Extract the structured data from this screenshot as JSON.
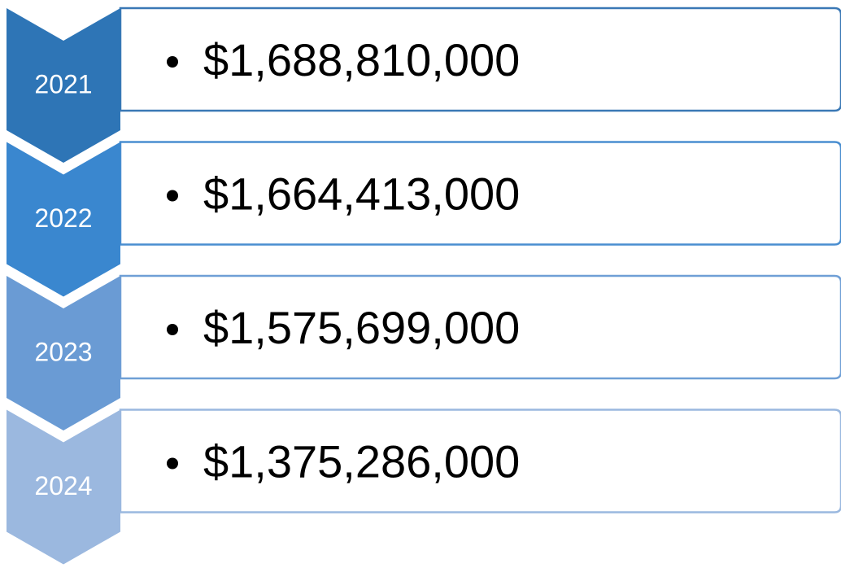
{
  "items": [
    {
      "year": "2021",
      "amount": "$1,688,810,000"
    },
    {
      "year": "2022",
      "amount": "$1,664,413,000"
    },
    {
      "year": "2023",
      "amount": "$1,575,699,000"
    },
    {
      "year": "2024",
      "amount": "$1,375,286,000"
    }
  ]
}
